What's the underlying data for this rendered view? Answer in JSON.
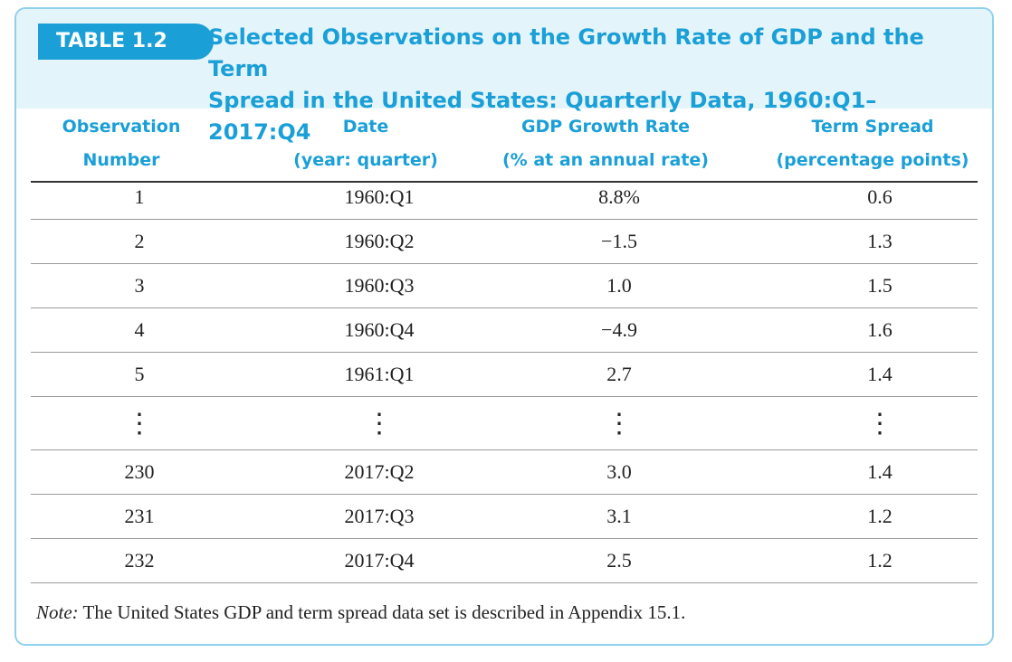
{
  "table": {
    "badge": "TABLE 1.2",
    "title_line1": "Selected Observations on the Growth Rate of GDP and the Term",
    "title_line2": "Spread in the United States: Quarterly Data, 1960:Q1–2017:Q4",
    "columns": [
      {
        "line1": "Observation",
        "line2": "Number"
      },
      {
        "line1": "Date",
        "line2": "(year: quarter)"
      },
      {
        "line1": "GDP Growth Rate",
        "line2": "(% at an annual rate)"
      },
      {
        "line1": "Term Spread",
        "line2": "(percentage points)"
      }
    ],
    "rows": [
      [
        "1",
        "1960:Q1",
        "8.8%",
        "0.6"
      ],
      [
        "2",
        "1960:Q2",
        "−1.5",
        "1.3"
      ],
      [
        "3",
        "1960:Q3",
        "1.0",
        "1.5"
      ],
      [
        "4",
        "1960:Q4",
        "−4.9",
        "1.6"
      ],
      [
        "5",
        "1961:Q1",
        "2.7",
        "1.4"
      ],
      [
        "⋮",
        "⋮",
        "⋮",
        "⋮"
      ],
      [
        "230",
        "2017:Q2",
        "3.0",
        "1.4"
      ],
      [
        "231",
        "2017:Q3",
        "3.1",
        "1.2"
      ],
      [
        "232",
        "2017:Q4",
        "2.5",
        "1.2"
      ]
    ],
    "note_label": "Note:",
    "note_text": " The United States GDP and term spread data set is described in Appendix 15.1."
  },
  "colors": {
    "accent": "#1a9fd6",
    "header_bg": "#e4f4fb",
    "border": "#8fd0ec"
  }
}
